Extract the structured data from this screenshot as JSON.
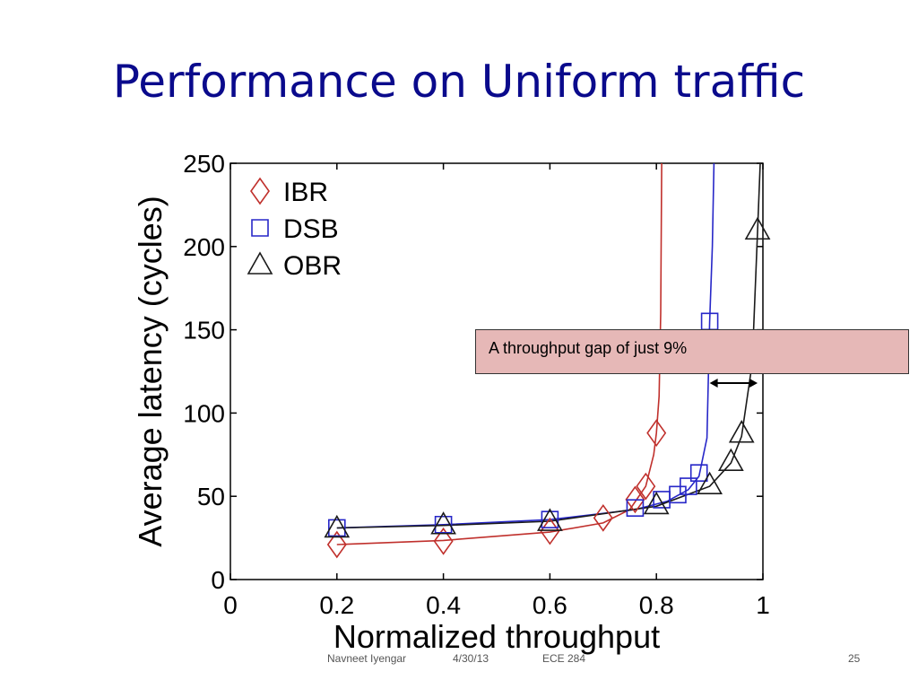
{
  "slide": {
    "title": "Performance on Uniform traffic",
    "callout": "A throughput gap of just 9%",
    "footer_author": "Navneet Iyengar",
    "footer_date": "4/30/13",
    "footer_course": "ECE 284",
    "footer_page": "25"
  },
  "chart_data": {
    "type": "line",
    "xlabel": "Normalized throughput",
    "ylabel": "Average latency (cycles)",
    "xlim": [
      0,
      1
    ],
    "ylim": [
      0,
      250
    ],
    "xticks": [
      "0",
      "0.2",
      "0.4",
      "0.6",
      "0.8",
      "1"
    ],
    "yticks": [
      "0",
      "50",
      "100",
      "150",
      "200",
      "250"
    ],
    "legend_position": "top-left",
    "series": [
      {
        "name": "IBR",
        "color": "#c0302c",
        "marker": "diamond",
        "points": [
          [
            0.2,
            21
          ],
          [
            0.4,
            23
          ],
          [
            0.6,
            29
          ],
          [
            0.7,
            37
          ],
          [
            0.76,
            48
          ],
          [
            0.78,
            56
          ],
          [
            0.8,
            88
          ]
        ],
        "curve": [
          [
            0.2,
            21
          ],
          [
            0.4,
            23.5
          ],
          [
            0.6,
            28.5
          ],
          [
            0.7,
            34
          ],
          [
            0.75,
            42
          ],
          [
            0.78,
            56
          ],
          [
            0.795,
            75
          ],
          [
            0.8,
            88
          ],
          [
            0.805,
            110
          ],
          [
            0.808,
            160
          ],
          [
            0.81,
            250
          ]
        ]
      },
      {
        "name": "DSB",
        "color": "#2727c8",
        "marker": "square",
        "points": [
          [
            0.2,
            31
          ],
          [
            0.4,
            33
          ],
          [
            0.6,
            36
          ],
          [
            0.76,
            43
          ],
          [
            0.81,
            48
          ],
          [
            0.84,
            51
          ],
          [
            0.86,
            56
          ],
          [
            0.88,
            64
          ],
          [
            0.9,
            155
          ]
        ],
        "curve": [
          [
            0.2,
            31
          ],
          [
            0.4,
            33
          ],
          [
            0.6,
            36
          ],
          [
            0.76,
            42
          ],
          [
            0.82,
            47
          ],
          [
            0.86,
            54
          ],
          [
            0.88,
            62
          ],
          [
            0.895,
            85
          ],
          [
            0.9,
            155
          ],
          [
            0.905,
            200
          ],
          [
            0.908,
            250
          ]
        ]
      },
      {
        "name": "OBR",
        "color": "#1a1a1a",
        "marker": "triangle",
        "points": [
          [
            0.2,
            31
          ],
          [
            0.4,
            33
          ],
          [
            0.6,
            35
          ],
          [
            0.8,
            45
          ],
          [
            0.9,
            57
          ],
          [
            0.94,
            71
          ],
          [
            0.96,
            88
          ],
          [
            0.99,
            210
          ]
        ],
        "curve": [
          [
            0.2,
            31
          ],
          [
            0.4,
            32.5
          ],
          [
            0.6,
            35
          ],
          [
            0.8,
            44
          ],
          [
            0.9,
            56
          ],
          [
            0.94,
            70
          ],
          [
            0.96,
            86
          ],
          [
            0.98,
            130
          ],
          [
            0.99,
            210
          ],
          [
            0.995,
            250
          ]
        ]
      }
    ],
    "annotation": {
      "type": "double-arrow",
      "x_from": 0.9,
      "x_to": 0.99,
      "y": 118
    }
  }
}
